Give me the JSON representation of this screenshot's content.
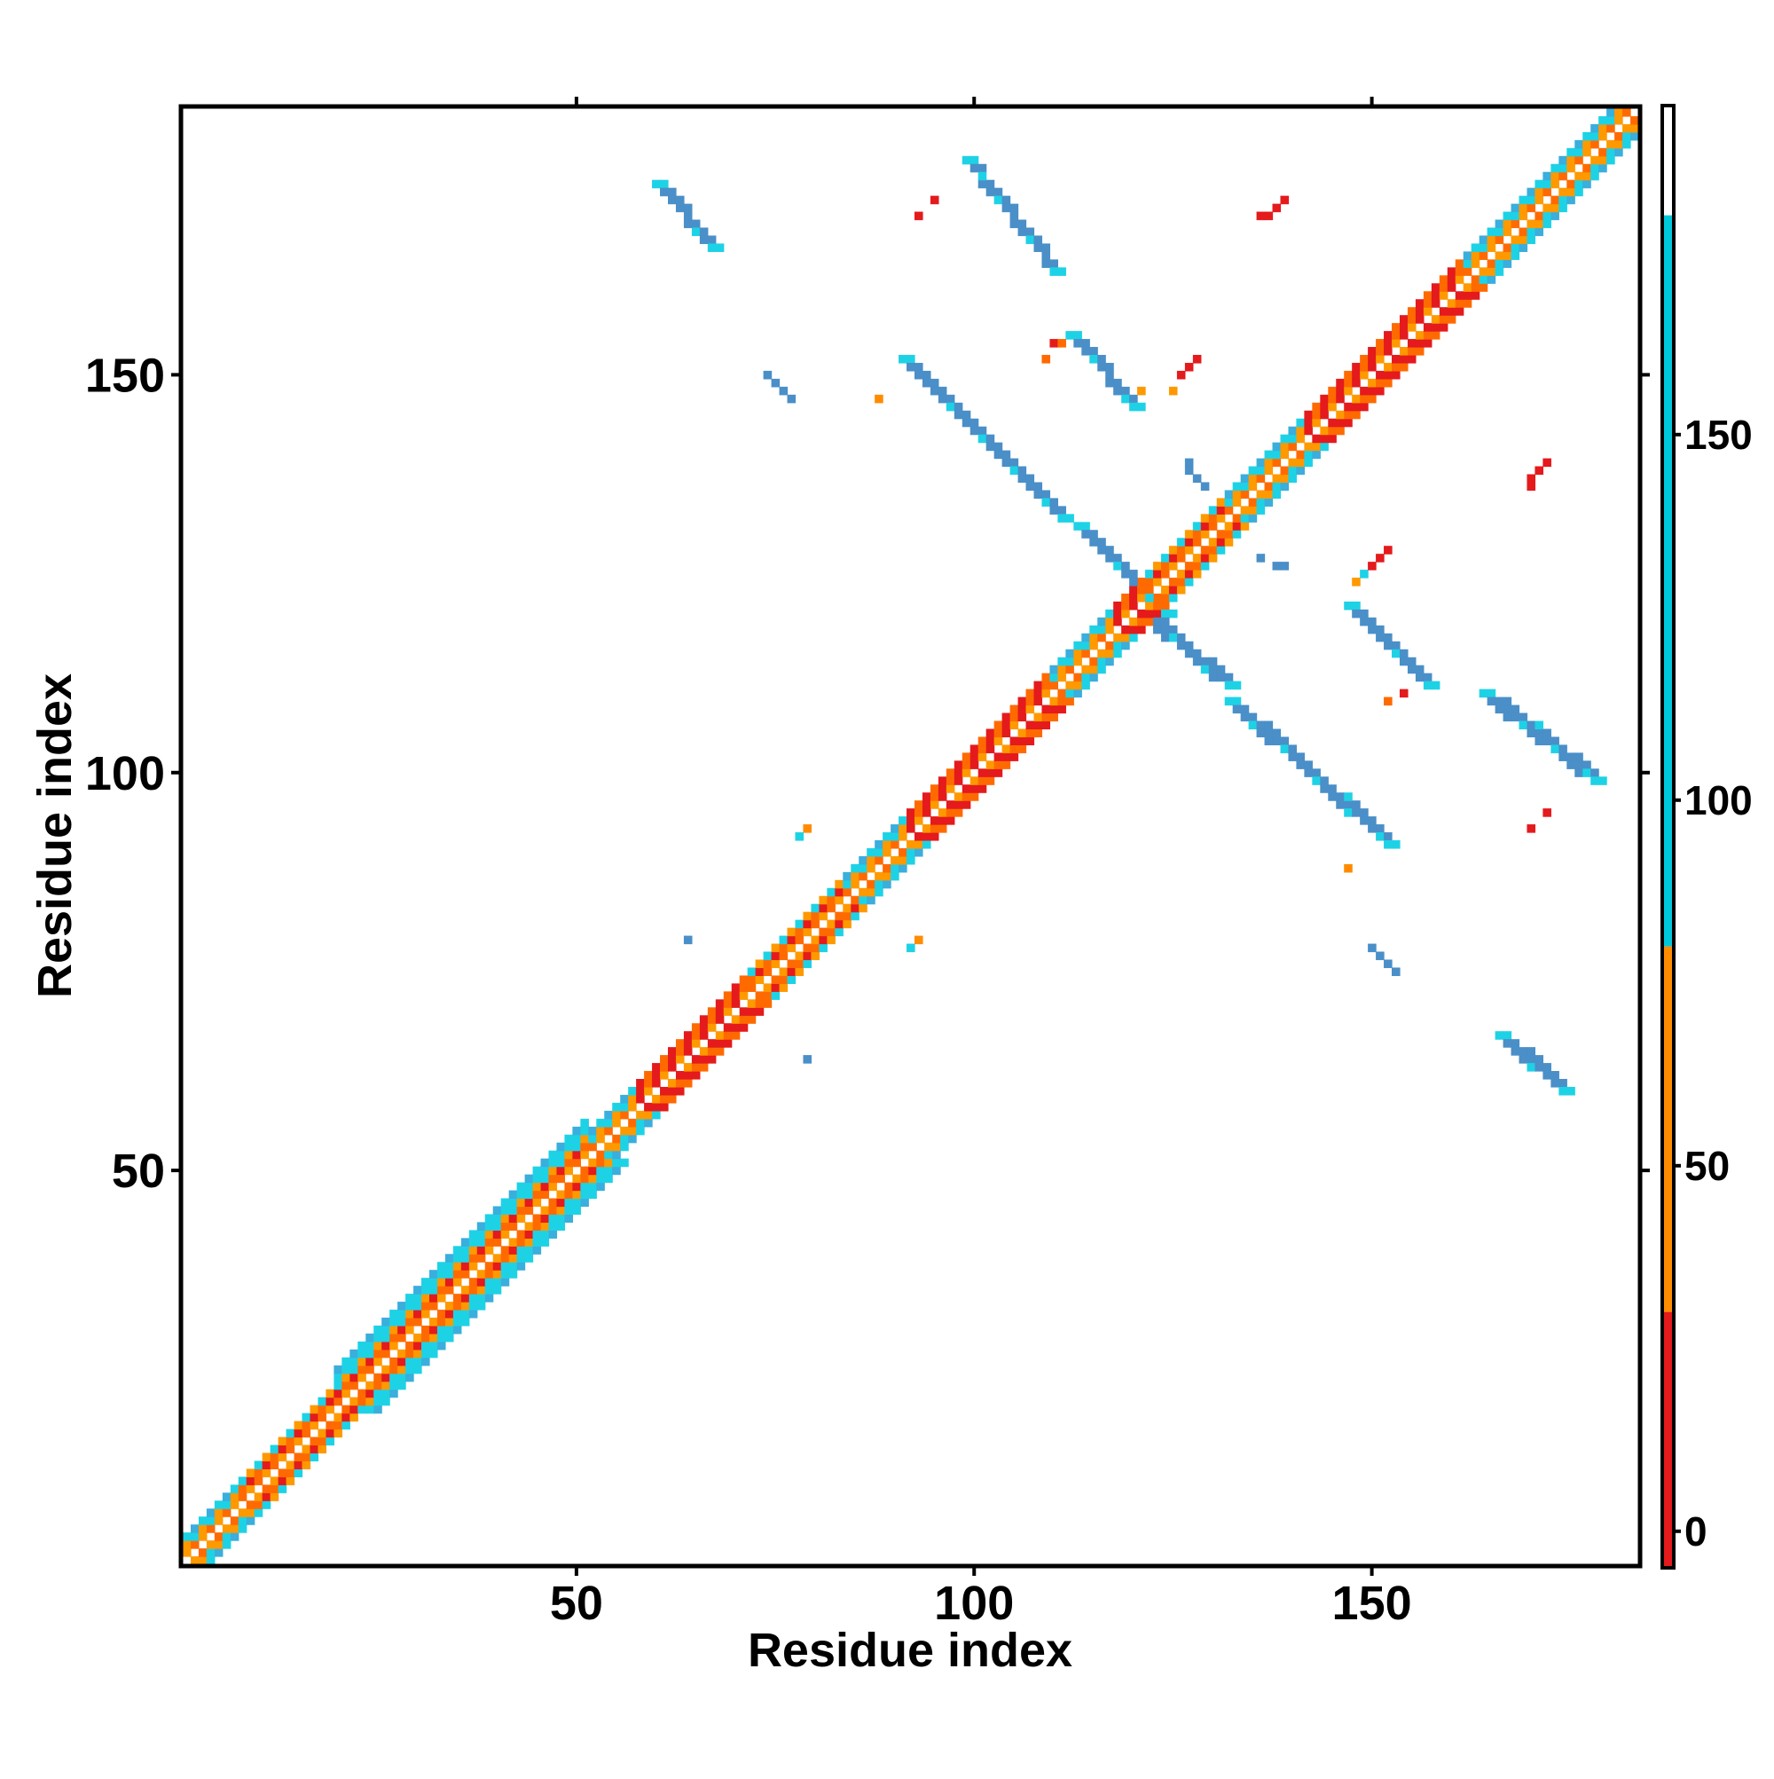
{
  "chart_data": {
    "type": "heatmap",
    "xlabel": "Residue index",
    "ylabel": "Residue index",
    "xlim": [
      1,
      183
    ],
    "ylim": [
      1,
      183
    ],
    "x_ticks": [
      50,
      100,
      150
    ],
    "y_ticks": [
      50,
      100,
      150
    ],
    "x_tick_labels": [
      "50",
      "100",
      "150"
    ],
    "y_tick_labels": [
      "50",
      "100",
      "150"
    ],
    "grid": false,
    "legend_position": "right",
    "colorbar": {
      "min": -5,
      "max": 195,
      "ticks": [
        0,
        50,
        100,
        150
      ],
      "tick_labels": [
        "0",
        "50",
        "100",
        "150"
      ],
      "bands": [
        {
          "from": -5,
          "to": 30,
          "color": "#e41a1c"
        },
        {
          "from": 30,
          "to": 80,
          "color": "#ff8c00"
        },
        {
          "from": 80,
          "to": 180,
          "color": "#00c8dc"
        },
        {
          "from": 180,
          "to": 195,
          "color": "#ffffff"
        }
      ]
    },
    "colors": {
      "red": "#e41a1c",
      "dark_orange": "#ff6a00",
      "orange": "#ff9900",
      "cyan": "#1ed2e6",
      "steel_blue": "#4a8fc8",
      "light_blue": "#3aaedc"
    },
    "diagonal_segments": [
      {
        "from": 1,
        "to": 8,
        "style": "cyan-mix"
      },
      {
        "from": 8,
        "to": 20,
        "style": "orange-mix"
      },
      {
        "from": 20,
        "to": 52,
        "style": "helix"
      },
      {
        "from": 52,
        "to": 58,
        "style": "cyan-mix"
      },
      {
        "from": 58,
        "to": 72,
        "style": "red-mix"
      },
      {
        "from": 72,
        "to": 84,
        "style": "orange-mix"
      },
      {
        "from": 84,
        "to": 92,
        "style": "cyan-mix"
      },
      {
        "from": 92,
        "to": 110,
        "style": "red-mix"
      },
      {
        "from": 110,
        "to": 118,
        "style": "cyan-mix"
      },
      {
        "from": 118,
        "to": 122,
        "style": "red-mix"
      },
      {
        "from": 122,
        "to": 132,
        "style": "orange-mix"
      },
      {
        "from": 132,
        "to": 142,
        "style": "cyan-mix"
      },
      {
        "from": 142,
        "to": 162,
        "style": "red-mix"
      },
      {
        "from": 162,
        "to": 175,
        "style": "cyan-mix"
      },
      {
        "from": 175,
        "to": 183,
        "style": "cyan-mix"
      }
    ],
    "antiparallel_strands": [
      {
        "x0": 60,
        "x1": 67,
        "y1": 174,
        "y0": 166
      },
      {
        "x0": 99,
        "x1": 110,
        "y1": 177,
        "y0": 163
      },
      {
        "x0": 112,
        "x1": 120,
        "y1": 155,
        "y0": 146
      },
      {
        "x0": 91,
        "x1": 111,
        "y1": 152,
        "y0": 132
      },
      {
        "x0": 113,
        "x1": 124,
        "y1": 131,
        "y0": 120
      },
      {
        "x0": 121,
        "x1": 132,
        "y1": 120,
        "y0": 111
      },
      {
        "x0": 132,
        "x1": 152,
        "y1": 109,
        "y0": 91
      },
      {
        "x0": 147,
        "x1": 157,
        "y1": 121,
        "y0": 111
      },
      {
        "x0": 164,
        "x1": 178,
        "y1": 110,
        "y0": 99
      },
      {
        "x0": 166,
        "x1": 174,
        "y1": 67,
        "y0": 60
      }
    ],
    "small_contacts": [
      {
        "x": 74,
        "y": 150,
        "color": "#4a8fc8"
      },
      {
        "x": 75,
        "y": 149,
        "color": "#4a8fc8"
      },
      {
        "x": 76,
        "y": 148,
        "color": "#4a8fc8"
      },
      {
        "x": 77,
        "y": 147,
        "color": "#4a8fc8"
      },
      {
        "x": 88,
        "y": 147,
        "color": "#ff8c00"
      },
      {
        "x": 78,
        "y": 92,
        "color": "#1ed2e6"
      },
      {
        "x": 79,
        "y": 93,
        "color": "#ff8c00"
      },
      {
        "x": 64,
        "y": 79,
        "color": "#4a8fc8"
      },
      {
        "x": 79,
        "y": 64,
        "color": "#4a8fc8"
      },
      {
        "x": 92,
        "y": 78,
        "color": "#1ed2e6"
      },
      {
        "x": 93,
        "y": 79,
        "color": "#ff8c00"
      },
      {
        "x": 93,
        "y": 170,
        "color": "#e41a1c"
      },
      {
        "x": 95,
        "y": 172,
        "color": "#e41a1c"
      },
      {
        "x": 109,
        "y": 152,
        "color": "#ff6a00"
      },
      {
        "x": 110,
        "y": 154,
        "color": "#e41a1c"
      },
      {
        "x": 111,
        "y": 154,
        "color": "#ff6a00"
      },
      {
        "x": 121,
        "y": 148,
        "color": "#ff9900"
      },
      {
        "x": 126,
        "y": 150,
        "color": "#e41a1c"
      },
      {
        "x": 127,
        "y": 151,
        "color": "#e41a1c"
      },
      {
        "x": 128,
        "y": 152,
        "color": "#e41a1c"
      },
      {
        "x": 125,
        "y": 148,
        "color": "#ff9900"
      },
      {
        "x": 127,
        "y": 139,
        "color": "#4a8fc8"
      },
      {
        "x": 127,
        "y": 138,
        "color": "#4a8fc8"
      },
      {
        "x": 128,
        "y": 137,
        "color": "#4a8fc8"
      },
      {
        "x": 129,
        "y": 136,
        "color": "#4a8fc8"
      },
      {
        "x": 136,
        "y": 127,
        "color": "#4a8fc8"
      },
      {
        "x": 138,
        "y": 126,
        "color": "#4a8fc8"
      },
      {
        "x": 139,
        "y": 126,
        "color": "#4a8fc8"
      },
      {
        "x": 136,
        "y": 170,
        "color": "#e41a1c"
      },
      {
        "x": 137,
        "y": 170,
        "color": "#e41a1c"
      },
      {
        "x": 138,
        "y": 171,
        "color": "#e41a1c"
      },
      {
        "x": 139,
        "y": 172,
        "color": "#e41a1c"
      },
      {
        "x": 148,
        "y": 124,
        "color": "#ff9900"
      },
      {
        "x": 149,
        "y": 125,
        "color": "#1ed2e6"
      },
      {
        "x": 150,
        "y": 126,
        "color": "#e41a1c"
      },
      {
        "x": 151,
        "y": 127,
        "color": "#e41a1c"
      },
      {
        "x": 152,
        "y": 128,
        "color": "#e41a1c"
      },
      {
        "x": 150,
        "y": 78,
        "color": "#4a8fc8"
      },
      {
        "x": 151,
        "y": 77,
        "color": "#4a8fc8"
      },
      {
        "x": 152,
        "y": 76,
        "color": "#4a8fc8"
      },
      {
        "x": 153,
        "y": 75,
        "color": "#4a8fc8"
      },
      {
        "x": 147,
        "y": 88,
        "color": "#ff8c00"
      },
      {
        "x": 152,
        "y": 109,
        "color": "#ff6a00"
      },
      {
        "x": 154,
        "y": 110,
        "color": "#e41a1c"
      },
      {
        "x": 170,
        "y": 136,
        "color": "#e41a1c"
      },
      {
        "x": 170,
        "y": 137,
        "color": "#e41a1c"
      },
      {
        "x": 171,
        "y": 138,
        "color": "#e41a1c"
      },
      {
        "x": 172,
        "y": 139,
        "color": "#e41a1c"
      },
      {
        "x": 170,
        "y": 93,
        "color": "#e41a1c"
      },
      {
        "x": 172,
        "y": 95,
        "color": "#e41a1c"
      }
    ]
  }
}
